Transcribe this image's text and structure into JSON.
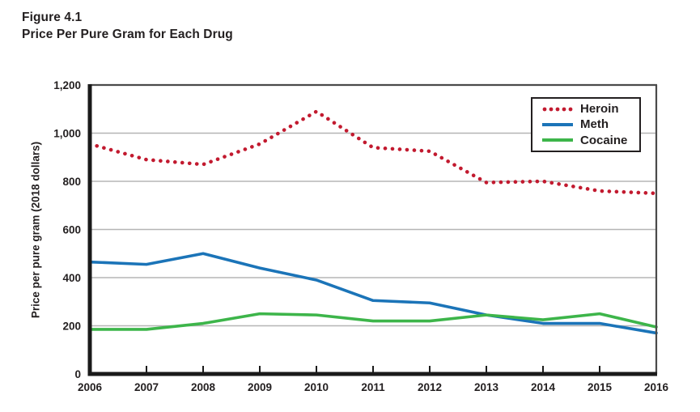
{
  "figure": {
    "label": "Figure 4.1",
    "title": "Price Per Pure Gram for Each Drug"
  },
  "chart_data": {
    "type": "line",
    "x": [
      2006,
      2007,
      2008,
      2009,
      2010,
      2011,
      2012,
      2013,
      2014,
      2015,
      2016
    ],
    "xtick_labels": [
      "2006",
      "2007",
      "2008",
      "2009",
      "2010",
      "2011",
      "2012",
      "2013",
      "2014",
      "2015",
      "2016"
    ],
    "series": [
      {
        "name": "Heroin",
        "style": "dotted",
        "color": "#C21A2F",
        "values": [
          955,
          890,
          870,
          955,
          1090,
          940,
          925,
          795,
          800,
          760,
          750
        ]
      },
      {
        "name": "Meth",
        "style": "solid",
        "color": "#1B74B8",
        "values": [
          465,
          455,
          500,
          440,
          390,
          305,
          295,
          245,
          210,
          210,
          170
        ]
      },
      {
        "name": "Cocaine",
        "style": "solid",
        "color": "#3DB54A",
        "values": [
          185,
          185,
          210,
          250,
          245,
          220,
          220,
          245,
          225,
          250,
          195
        ]
      }
    ],
    "ylabel": "Price per pure gram (2018 dollars)",
    "ylim": [
      0,
      1200
    ],
    "yticks": [
      0,
      200,
      400,
      600,
      800,
      1000,
      1200
    ],
    "ytick_labels": [
      "0",
      "200",
      "400",
      "600",
      "800",
      "1,000",
      "1,200"
    ],
    "grid": "horizontal",
    "legend_position": "top-right"
  },
  "colors": {
    "text": "#231F20",
    "axis": "#1A1A1A",
    "border": "#4A4A4A",
    "grid": "#B5B5B5",
    "background": "#FFFFFF"
  }
}
